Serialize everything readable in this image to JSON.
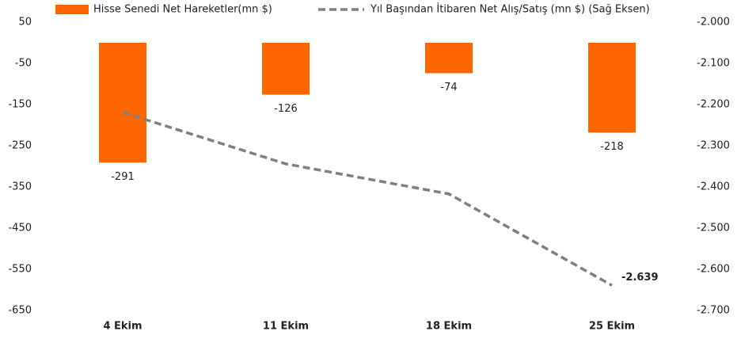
{
  "chart_data": {
    "type": "bar",
    "categories": [
      "4 Ekim",
      "11 Ekim",
      "18 Ekim",
      "25 Ekim"
    ],
    "series": [
      {
        "name": "Hisse Senedi Net Hareketler(mn $)",
        "type": "bar",
        "color": "#ff6600",
        "values": [
          -291,
          -126,
          -74,
          -218
        ]
      },
      {
        "name": "Yıl Başından İtibaren Net Alış/Satış (mn $) (Sağ Eksen)",
        "type": "line",
        "axis": "y2",
        "color": "#808080",
        "dashed": true,
        "values": [
          -2219,
          -2344,
          -2417,
          -2639
        ],
        "value_labels": [
          null,
          null,
          null,
          "-2.639"
        ]
      }
    ],
    "ylim": [
      -650,
      50
    ],
    "yticks": [
      50,
      -50,
      -150,
      -250,
      -350,
      -450,
      -550,
      -650
    ],
    "y2lim": [
      -2700,
      -2000
    ],
    "y2ticks": [
      {
        "value": -2000,
        "label": "-2.000"
      },
      {
        "value": -2100,
        "label": "-2.100"
      },
      {
        "value": -2200,
        "label": "-2.200"
      },
      {
        "value": -2300,
        "label": "-2.300"
      },
      {
        "value": -2400,
        "label": "-2.400"
      },
      {
        "value": -2500,
        "label": "-2.500"
      },
      {
        "value": -2600,
        "label": "-2.600"
      },
      {
        "value": -2700,
        "label": "-2.700"
      }
    ],
    "grid": false,
    "legend": "top"
  }
}
